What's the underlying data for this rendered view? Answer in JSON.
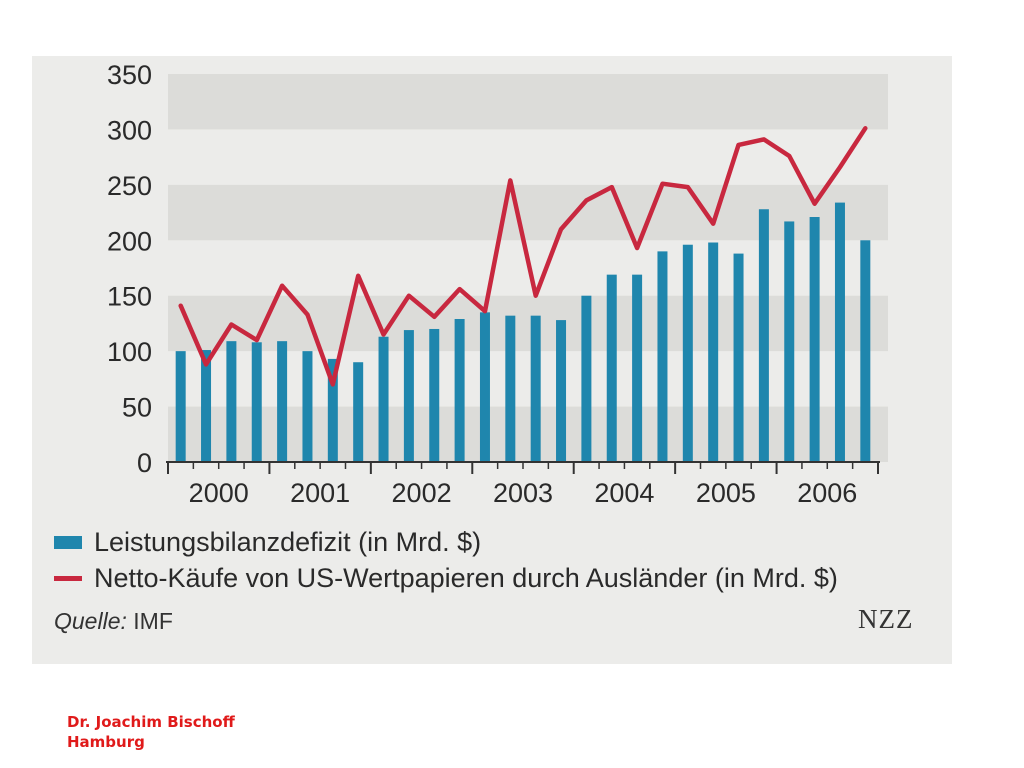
{
  "chart_data": {
    "type": "bar",
    "title": "",
    "xlabel": "",
    "ylabel": "",
    "ylim": [
      0,
      350
    ],
    "yticks": [
      0,
      50,
      100,
      150,
      200,
      250,
      300,
      350
    ],
    "year_labels": [
      "2000",
      "2001",
      "2002",
      "2003",
      "2004",
      "2005",
      "2006"
    ],
    "quarters_per_year": 4,
    "grid": "alternating horizontal bands",
    "legend_position": "bottom",
    "series": [
      {
        "name": "Leistungsbilanzdefizit (in Mrd. $)",
        "kind": "bar",
        "color": "#1f86ad",
        "values": [
          100,
          101,
          109,
          108,
          109,
          100,
          93,
          90,
          113,
          119,
          120,
          129,
          135,
          132,
          132,
          128,
          150,
          169,
          169,
          190,
          196,
          198,
          188,
          228,
          217,
          221,
          234,
          200
        ]
      },
      {
        "name": "Netto-Käufe von US-Wertpapieren durch Ausländer (in Mrd. $)",
        "kind": "line",
        "color": "#c8283f",
        "values": [
          141,
          88,
          124,
          110,
          159,
          133,
          70,
          168,
          115,
          150,
          131,
          156,
          136,
          254,
          150,
          210,
          236,
          248,
          193,
          251,
          248,
          215,
          286,
          291,
          276,
          233,
          266,
          301
        ]
      }
    ]
  },
  "source": {
    "label": "Quelle:",
    "value": "IMF"
  },
  "brand": "NZZ",
  "author": {
    "name": "Dr. Joachim Bischoff",
    "city": "Hamburg"
  }
}
